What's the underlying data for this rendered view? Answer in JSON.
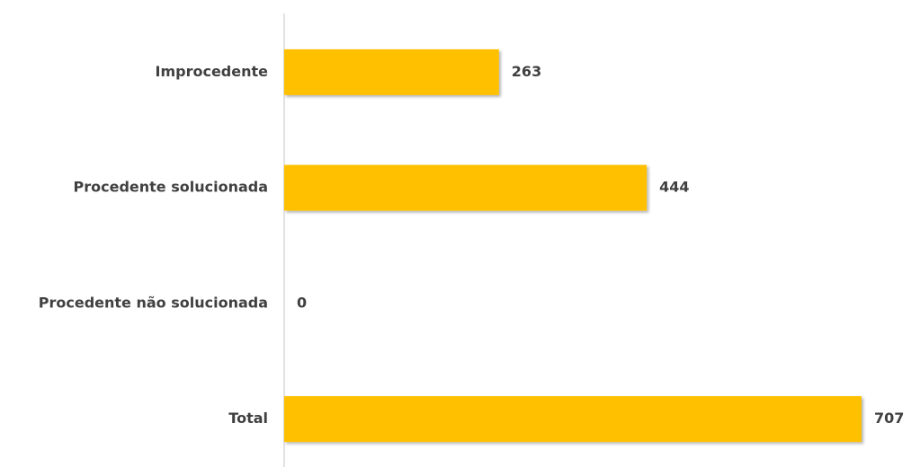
{
  "chart_data": {
    "type": "barh",
    "categories": [
      "Improcedente",
      "Procedente solucionada",
      "Procedente não solucionada",
      "Total"
    ],
    "values": [
      263,
      444,
      0,
      707
    ],
    "color": "#FFC000",
    "xlim": [
      0,
      750
    ]
  }
}
